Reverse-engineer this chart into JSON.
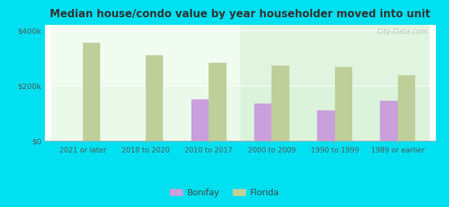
{
  "title": "Median house/condo value by year householder moved into unit",
  "categories": [
    "2021 or later",
    "2018 to 2020",
    "2010 to 2017",
    "2000 to 2009",
    "1990 to 1999",
    "1989 or earlier"
  ],
  "bonifay_values": [
    null,
    null,
    150000,
    135000,
    110000,
    145000
  ],
  "florida_values": [
    355000,
    310000,
    283000,
    272000,
    268000,
    238000
  ],
  "bonifay_color": "#c9a0dc",
  "florida_color": "#bfcf9a",
  "background_outer": "#00e0f0",
  "ylabel_ticks": [
    "$0",
    "$200k",
    "$400k"
  ],
  "ytick_values": [
    0,
    200000,
    400000
  ],
  "ylim": [
    0,
    420000
  ],
  "bar_width": 0.28,
  "legend_bonifay": "Bonifay",
  "legend_florida": "Florida",
  "watermark": "City-Data.com"
}
